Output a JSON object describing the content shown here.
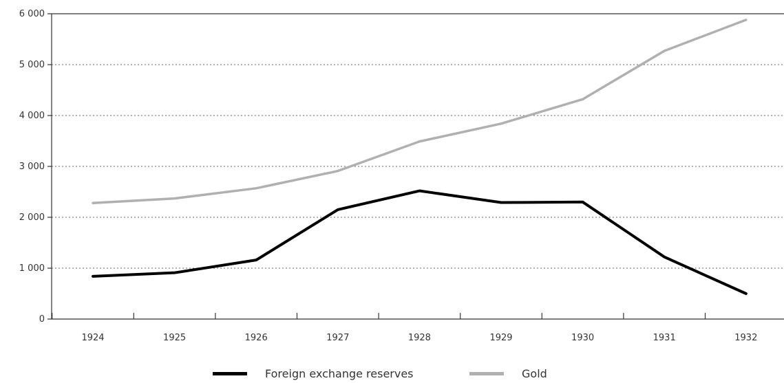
{
  "chart_data": {
    "type": "line",
    "title": "",
    "xlabel": "",
    "ylabel": "",
    "x": [
      "1924",
      "1925",
      "1926",
      "1927",
      "1928",
      "1929",
      "1930",
      "1931",
      "1932"
    ],
    "ylim": [
      0,
      6000
    ],
    "y_ticks": [
      "0",
      "1 000",
      "2 000",
      "3 000",
      "4 000",
      "5 000",
      "6 000"
    ],
    "grid": "horizontal dotted",
    "legend_position": "bottom",
    "series": [
      {
        "name": "Foreign exchange reserves",
        "color": "#000000",
        "values": [
          840,
          910,
          1160,
          2150,
          2520,
          2290,
          2300,
          1220,
          500
        ]
      },
      {
        "name": "Gold",
        "color": "#b0b0b0",
        "values": [
          2280,
          2370,
          2570,
          2910,
          3490,
          3840,
          4320,
          5270,
          5880
        ]
      }
    ]
  }
}
